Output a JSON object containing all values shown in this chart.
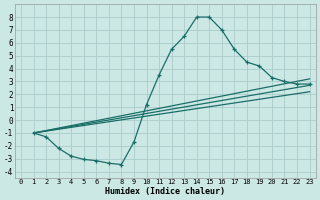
{
  "bg_color": "#cce8e4",
  "grid_color": "#aaccca",
  "line_color": "#1a6e68",
  "xlabel": "Humidex (Indice chaleur)",
  "xlim": [
    -0.5,
    23.5
  ],
  "ylim": [
    -4.5,
    9.0
  ],
  "xticks": [
    0,
    1,
    2,
    3,
    4,
    5,
    6,
    7,
    8,
    9,
    10,
    11,
    12,
    13,
    14,
    15,
    16,
    17,
    18,
    19,
    20,
    21,
    22,
    23
  ],
  "yticks": [
    -4,
    -3,
    -2,
    -1,
    0,
    1,
    2,
    3,
    4,
    5,
    6,
    7,
    8
  ],
  "main_x": [
    1,
    2,
    3,
    4,
    5,
    6,
    7,
    8,
    9,
    10,
    11,
    12,
    13,
    14,
    15,
    16,
    17,
    18,
    19,
    20,
    21,
    22,
    23
  ],
  "main_y": [
    -1.0,
    -1.3,
    -2.2,
    -2.8,
    -3.05,
    -3.15,
    -3.35,
    -3.45,
    -1.7,
    1.2,
    3.5,
    5.5,
    6.5,
    8.0,
    8.0,
    7.0,
    5.5,
    4.5,
    4.2,
    3.3,
    3.0,
    2.8,
    2.8
  ],
  "line1_x": [
    1,
    23
  ],
  "line1_y": [
    -1.0,
    3.2
  ],
  "line2_x": [
    1,
    23
  ],
  "line2_y": [
    -1.0,
    2.7
  ],
  "line3_x": [
    1,
    23
  ],
  "line3_y": [
    -1.0,
    2.2
  ],
  "xlabel_fontsize": 6.0,
  "tick_fontsize_x": 5.0,
  "tick_fontsize_y": 5.5
}
